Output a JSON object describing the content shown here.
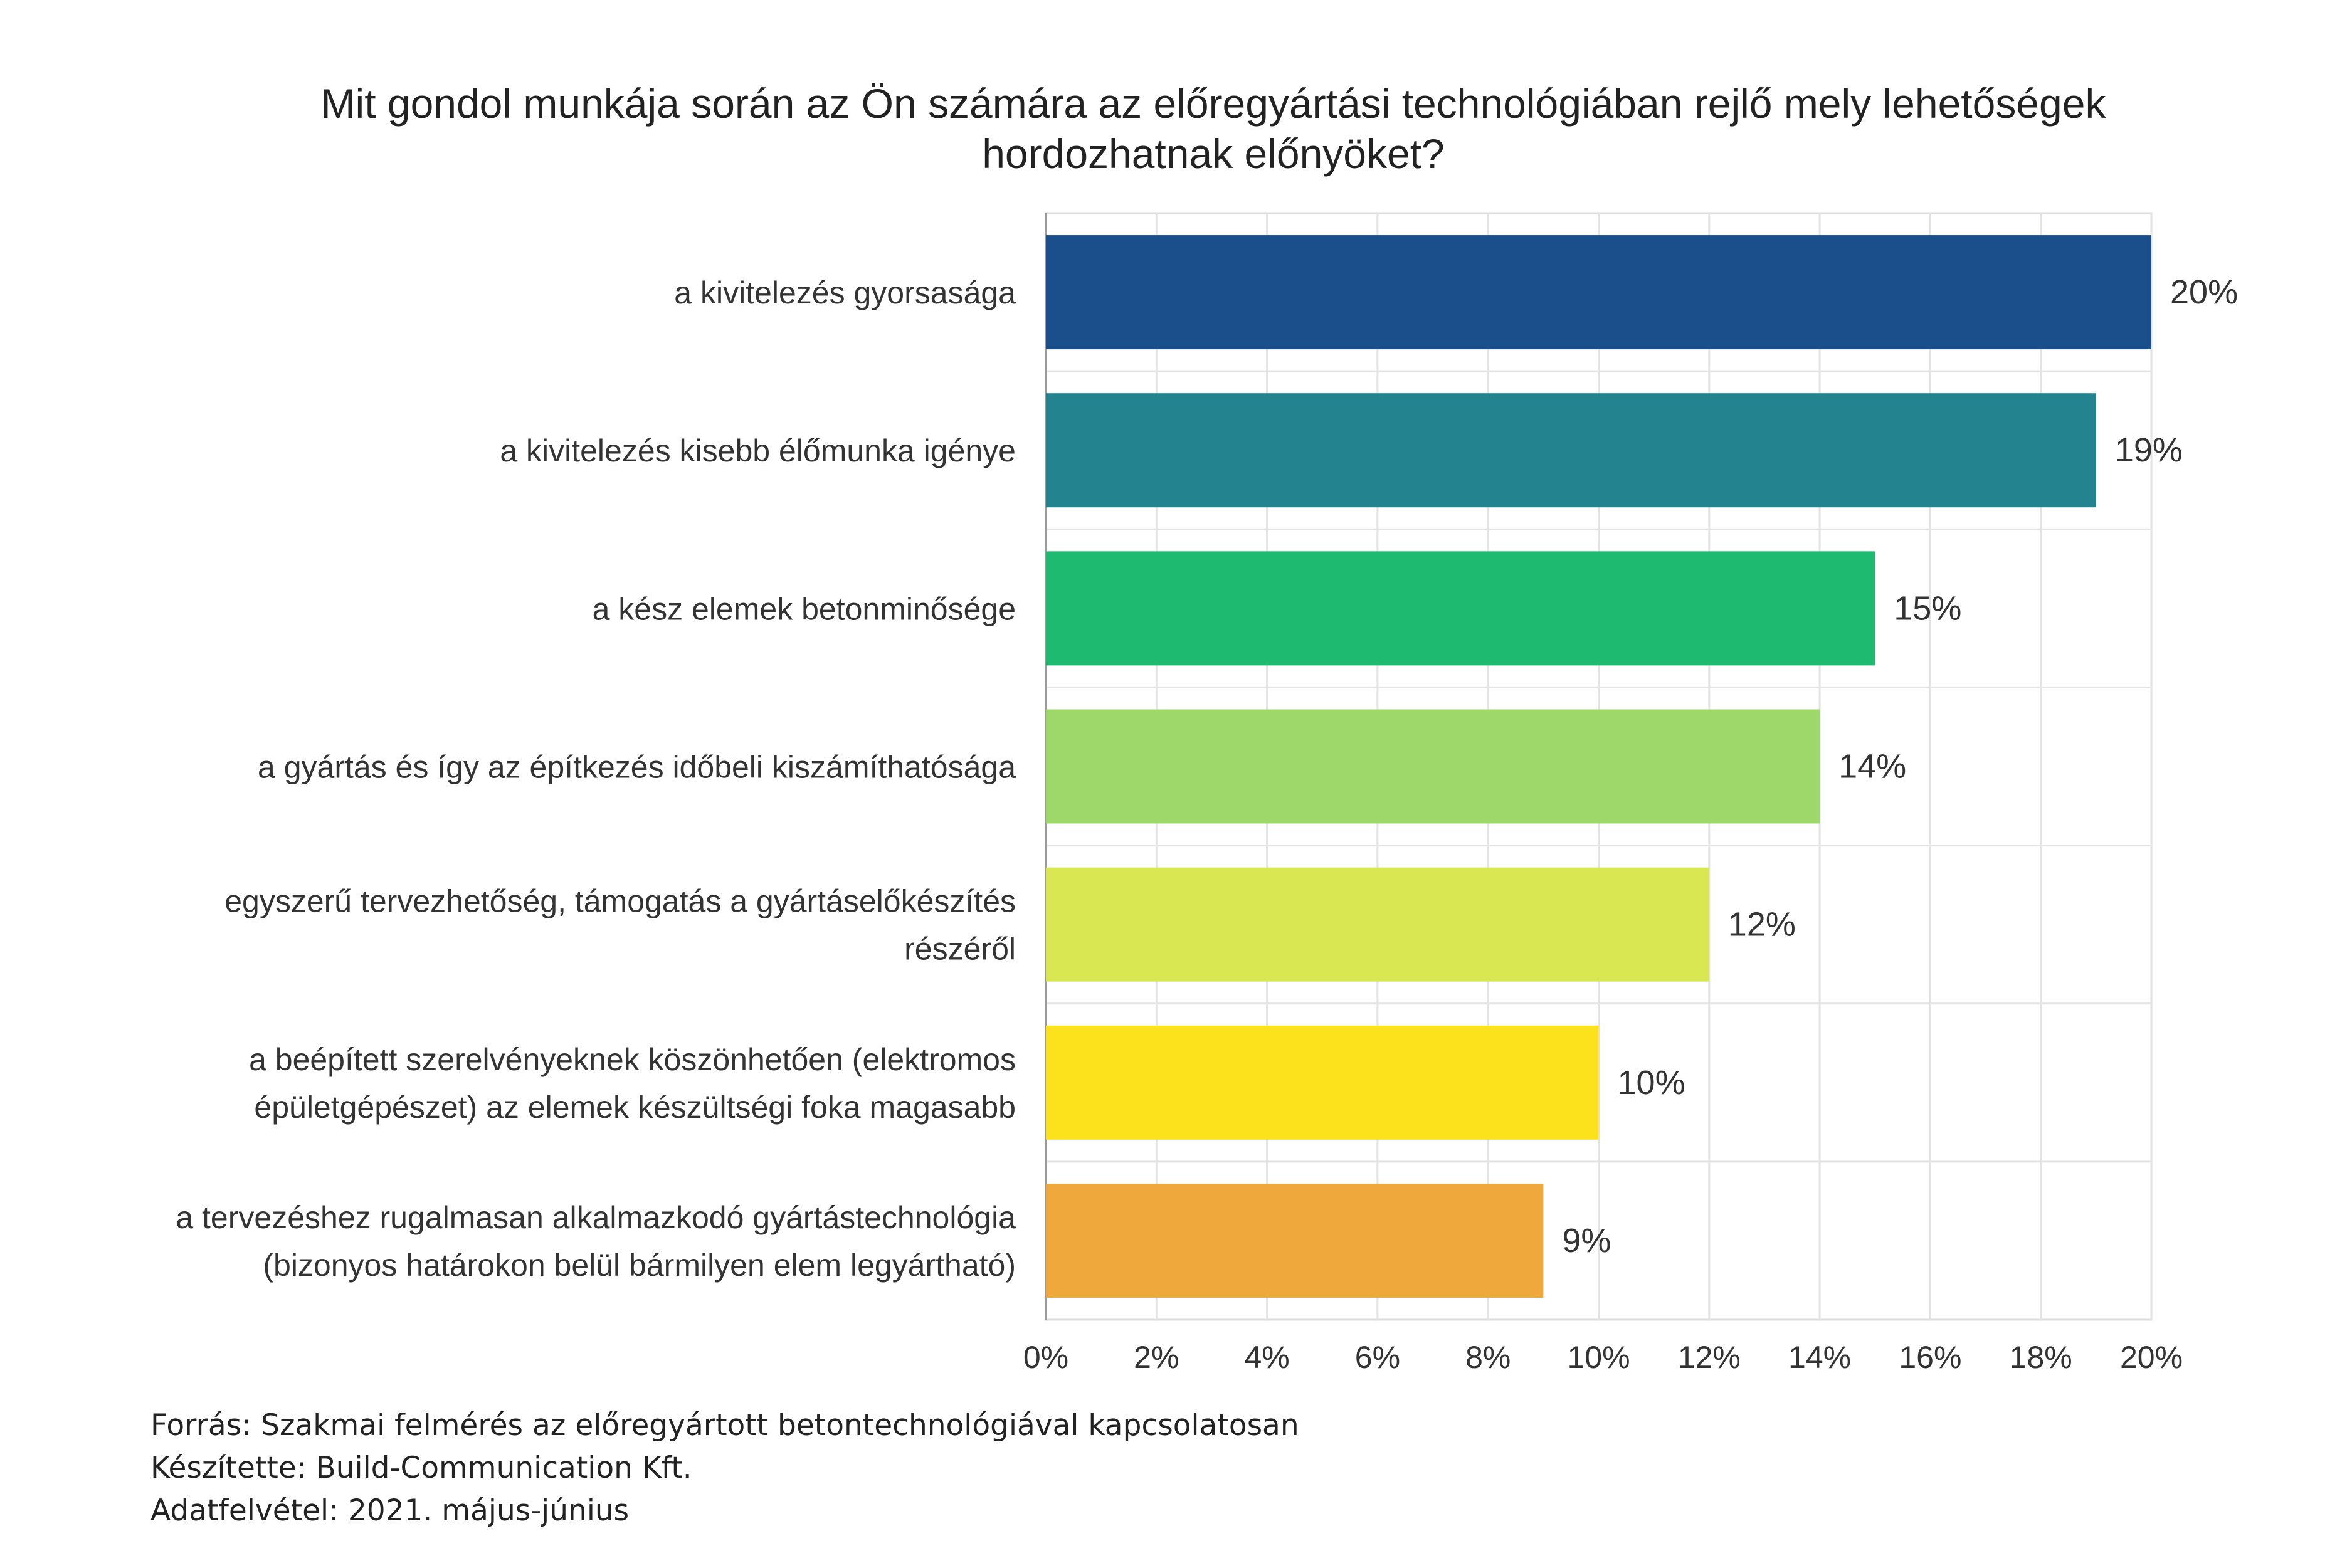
{
  "chart_data": {
    "type": "bar",
    "orientation": "horizontal",
    "title": "Mit gondol munkája során az Ön számára az előregyártási technológiában rejlő mely lehetőségek hordozhatnak előnyöket?",
    "title_lines": [
      "Mit gondol munkája során az Ön számára az előregyártási technológiában rejlő mely lehetőségek",
      "hordozhatnak előnyöket?"
    ],
    "categories": [
      "a kivitelezés gyorsasága",
      "a kivitelezés kisebb élőmunka igénye",
      "a kész elemek betonminősége",
      "a gyártás és így az építkezés időbeli kiszámíthatósága",
      "egyszerű tervezhetőség, támogatás a gyártáselőkészítés részéről",
      "a beépített szerelvényeknek köszönhetően (elektromos épületgépészet) az elemek készültségi foka magasabb",
      "a tervezéshez rugalmasan alkalmazkodó gyártástechnológia (bizonyos határokon belül bármilyen elem legyártható)"
    ],
    "category_lines": [
      [
        "a kivitelezés gyorsasága"
      ],
      [
        "a kivitelezés kisebb élőmunka igénye"
      ],
      [
        "a kész elemek betonminősége"
      ],
      [
        "a gyártás és így az építkezés időbeli kiszámíthatósága"
      ],
      [
        "egyszerű tervezhetőség, támogatás a gyártáselőkészítés",
        "részéről"
      ],
      [
        "a beépített szerelvényeknek köszönhetően (elektromos",
        "épületgépészet) az elemek készültségi foka magasabb"
      ],
      [
        "a tervezéshez rugalmasan alkalmazkodó gyártástechnológia",
        "(bizonyos határokon belül bármilyen elem legyártható)"
      ]
    ],
    "values": [
      20,
      19,
      15,
      14,
      12,
      10,
      9
    ],
    "value_labels": [
      "20%",
      "19%",
      "15%",
      "14%",
      "12%",
      "10%",
      "9%"
    ],
    "colors": [
      "#1a4f8b",
      "#23838f",
      "#1dba6f",
      "#9ed86a",
      "#d9e753",
      "#fbe21c",
      "#eea83c"
    ],
    "xlim": [
      0,
      20
    ],
    "xticks": [
      0,
      2,
      4,
      6,
      8,
      10,
      12,
      14,
      16,
      18,
      20
    ],
    "xtick_labels": [
      "0%",
      "2%",
      "4%",
      "6%",
      "8%",
      "10%",
      "12%",
      "14%",
      "16%",
      "18%",
      "20%"
    ],
    "grid": true,
    "legend": "none"
  },
  "footer": {
    "source": "Forrás: Szakmai felmérés az előregyártott betontechnológiával kapcsolatosan",
    "author": "Készítette: Build-Communication Kft.",
    "date": "Adatfelvétel: 2021. május-június"
  }
}
